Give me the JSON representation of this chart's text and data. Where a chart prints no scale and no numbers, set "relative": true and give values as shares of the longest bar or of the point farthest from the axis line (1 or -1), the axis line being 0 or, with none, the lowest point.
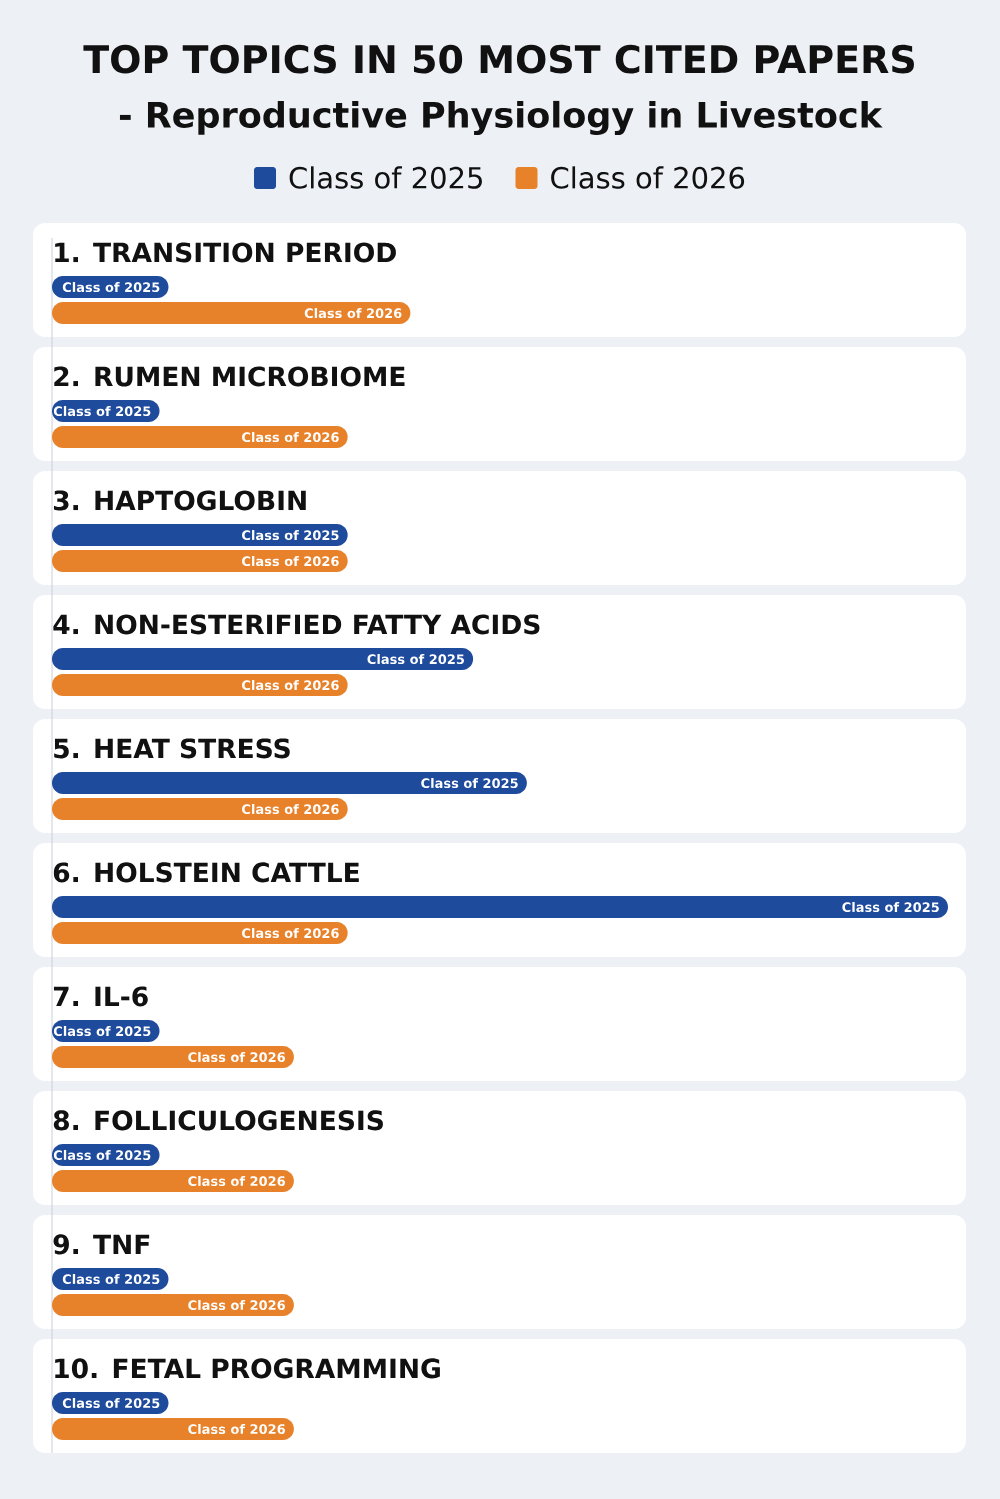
{
  "chart_data": {
    "type": "bar",
    "orientation": "horizontal",
    "relative": true,
    "title": "TOP TOPICS IN 50 MOST CITED PAPERS",
    "subtitle": "- Reproductive Physiology in Livestock",
    "categories": [
      "1. TRANSITION PERIOD",
      "2. RUMEN MICROBIOME",
      "3. HAPTOGLOBIN",
      "4. NON-ESTERIFIED FATTY ACIDS",
      "5. HEAT STRESS",
      "6. HOLSTEIN CATTLE",
      "7. IL-6",
      "8. FOLLICULOGENESIS",
      "9. TNF",
      "10. FETAL PROGRAMMING"
    ],
    "series": [
      {
        "name": "Class of 2025",
        "color": "#1e4b9c",
        "values": [
          0.13,
          0.12,
          0.33,
          0.47,
          0.53,
          1,
          0.12,
          0.12,
          0.13,
          0.13
        ]
      },
      {
        "name": "Class of 2026",
        "color": "#e8822a",
        "values": [
          0.4,
          0.33,
          0.33,
          0.33,
          0.33,
          0.33,
          0.27,
          0.27,
          0.27,
          0.27
        ]
      }
    ],
    "legend": "top"
  }
}
